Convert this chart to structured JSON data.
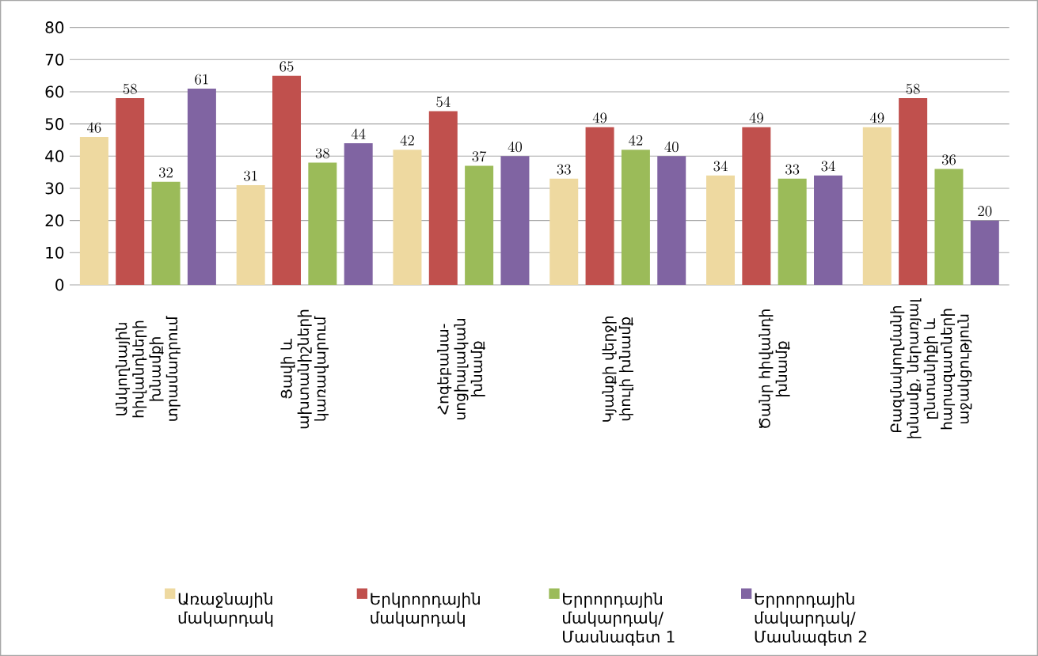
{
  "chart_data": {
    "type": "bar",
    "categories": [
      "Անկողնային հիվանդների խնամքի տրամադրում",
      "Ցավի և ախտանիշների կառավարում",
      "Հոգեբանա-սոցիալական խնամք",
      "Կյանքի վերջի փուլի խնամք",
      "Ծանր հիվանդի խնամք",
      "Բազմակողմանի խնամք, ներառյալ ընտանիքի և հարազատների աջակցություն"
    ],
    "series": [
      {
        "name": "Առաջնային մակարդակ",
        "color": "#eed9a0",
        "values": [
          46,
          31,
          42,
          33,
          34,
          49
        ]
      },
      {
        "name": "Երկրորդային մակարդակ",
        "color": "#c0504d",
        "values": [
          58,
          65,
          54,
          49,
          49,
          58
        ]
      },
      {
        "name": "Երրորդային մակարդակ/ Մասնագետ 1",
        "color": "#9bbb59",
        "values": [
          32,
          38,
          37,
          42,
          33,
          36
        ]
      },
      {
        "name": "Երրորդային մակարդակ/ Մասնագետ 2",
        "color": "#8064a2",
        "values": [
          61,
          44,
          40,
          40,
          34,
          20
        ]
      }
    ],
    "ylim": [
      0,
      80
    ],
    "yticks": [
      0,
      10,
      20,
      30,
      40,
      50,
      60,
      70,
      80
    ],
    "grid": "y",
    "legend": "bottom",
    "data_labels": true
  }
}
